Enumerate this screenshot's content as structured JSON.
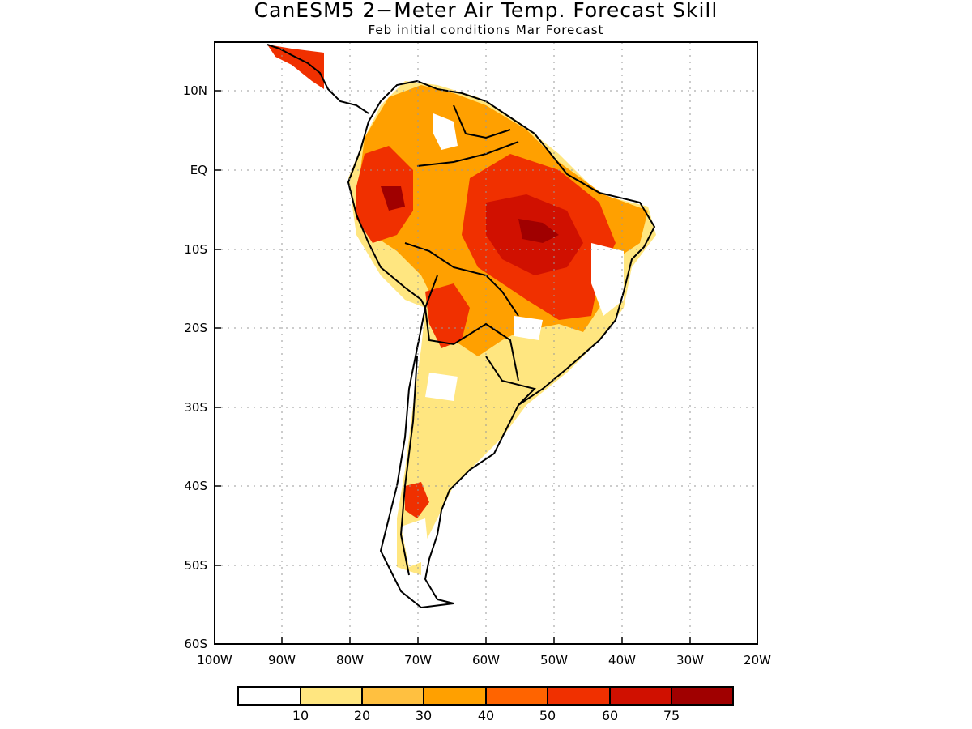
{
  "title": "CanESM5 2−Meter Air Temp. Forecast Skill",
  "subtitle": "Feb initial conditions  Mar Forecast",
  "map": {
    "lon_range": [
      -100,
      -20
    ],
    "lat_range": [
      -60,
      5
    ],
    "x_ticks": [
      "100W",
      "90W",
      "80W",
      "70W",
      "60W",
      "50W",
      "40W",
      "30W",
      "20W"
    ],
    "y_ticks": [
      "10N",
      "EQ",
      "10S",
      "20S",
      "30S",
      "40S",
      "50S",
      "60S"
    ]
  },
  "colorbar": {
    "colors": [
      "#ffffff",
      "#ffe680",
      "#ffc040",
      "#ffa000",
      "#ff6400",
      "#f03000",
      "#d01000",
      "#a00000"
    ],
    "labels": [
      "10",
      "20",
      "30",
      "40",
      "50",
      "60",
      "75"
    ]
  }
}
